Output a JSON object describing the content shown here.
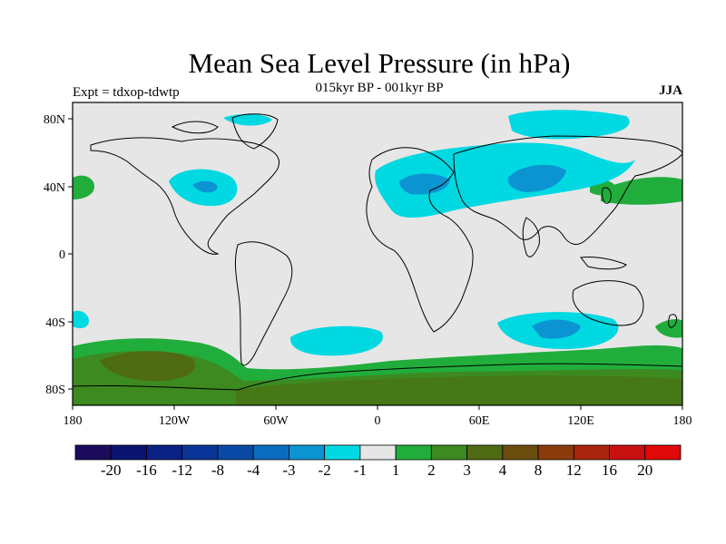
{
  "title": "Mean Sea Level Pressure (in hPa)",
  "subtitle": "015kyr BP - 001kyr BP",
  "left_label": "Expt = tdxop-tdwtp",
  "right_label": "JJA",
  "map": {
    "projection": "cylindrical equidistant",
    "lon_range": [
      -180,
      180
    ],
    "lat_range": [
      -90,
      90
    ],
    "background_color": "#e6e6e6",
    "coastline_color": "#000000",
    "x_ticks": [
      "180",
      "120W",
      "60W",
      "0",
      "60E",
      "120E",
      "180"
    ],
    "y_ticks": [
      "80N",
      "40N",
      "0",
      "40S",
      "80S"
    ]
  },
  "colorbar": {
    "colors": [
      "#1c0a5c",
      "#0a1470",
      "#0b2184",
      "#0a3598",
      "#0a4aa6",
      "#0b6cbe",
      "#0c94d2",
      "#00d8e2",
      "#e6e6e6",
      "#21ad3c",
      "#3c8a20",
      "#4e6a12",
      "#6b4e0e",
      "#8a3c0c",
      "#a8240c",
      "#c81010",
      "#e00808"
    ],
    "labels": [
      "-20",
      "-16",
      "-12",
      "-8",
      "-4",
      "-3",
      "-2",
      "-1",
      "1",
      "2",
      "3",
      "4",
      "8",
      "12",
      "16",
      "20"
    ]
  }
}
